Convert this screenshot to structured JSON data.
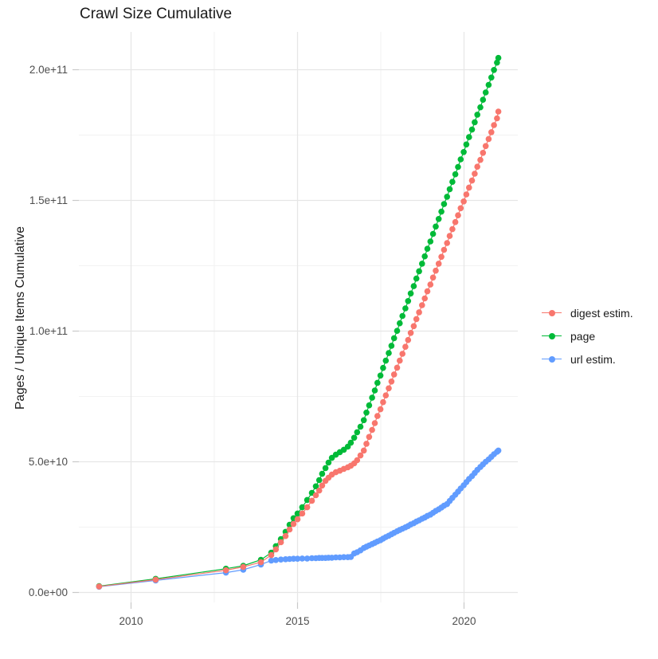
{
  "chart_data": {
    "type": "line",
    "title": "Crawl Size Cumulative",
    "xlabel": "",
    "ylabel": "Pages / Unique Items Cumulative",
    "grid": "major+minor",
    "legend_position": "right",
    "xlim": [
      2008.4,
      2021.6
    ],
    "ylim": [
      -3800000000.0,
      214500000000.0
    ],
    "x_ticks": {
      "major": [
        2010,
        2015,
        2020
      ],
      "minor": [
        2012.5,
        2017.5
      ],
      "labels": [
        "2010",
        "2015",
        "2020"
      ]
    },
    "y_ticks": {
      "major_billions": [
        0,
        50,
        100,
        150,
        200
      ],
      "minor_billions": [
        25,
        75,
        125,
        175
      ],
      "labels": [
        "0.0e+00",
        "5.0e+10",
        "1.0e+11",
        "1.5e+11",
        "2.0e+11"
      ]
    },
    "y_unit": "billions (1e9 items)",
    "x": [
      2009.04,
      2010.74,
      2012.85,
      2013.37,
      2013.9,
      2014.21,
      2014.35,
      2014.5,
      2014.64,
      2014.76,
      2014.88,
      2015.0,
      2015.14,
      2015.29,
      2015.43,
      2015.55,
      2015.65,
      2015.74,
      2015.84,
      2015.93,
      2016.03,
      2016.15,
      2016.27,
      2016.39,
      2016.51,
      2016.6,
      2016.7,
      2016.79,
      2016.89,
      2016.99,
      2017.07,
      2017.15,
      2017.24,
      2017.32,
      2017.4,
      2017.49,
      2017.57,
      2017.65,
      2017.74,
      2017.82,
      2017.9,
      2017.99,
      2018.07,
      2018.15,
      2018.24,
      2018.32,
      2018.4,
      2018.49,
      2018.57,
      2018.65,
      2018.74,
      2018.82,
      2018.9,
      2018.99,
      2019.07,
      2019.15,
      2019.24,
      2019.32,
      2019.4,
      2019.49,
      2019.57,
      2019.65,
      2019.74,
      2019.82,
      2019.9,
      2019.99,
      2020.07,
      2020.15,
      2020.24,
      2020.32,
      2020.4,
      2020.49,
      2020.57,
      2020.65,
      2020.74,
      2020.82,
      2020.9,
      2020.99,
      2021.03
    ],
    "series": [
      {
        "name": "digest estim.",
        "color": "#F8766D",
        "values_billions": [
          2.3,
          4.9,
          8.5,
          9.8,
          11.6,
          14.3,
          16.5,
          19.2,
          21.6,
          24.1,
          26.2,
          28.0,
          30.2,
          32.6,
          35.1,
          37.2,
          39.0,
          40.9,
          42.7,
          43.9,
          45.1,
          46.0,
          46.6,
          47.3,
          47.9,
          48.5,
          49.4,
          50.6,
          52.4,
          54.3,
          56.9,
          59.5,
          62.2,
          64.8,
          67.5,
          70.1,
          72.8,
          75.4,
          78.1,
          80.7,
          83.4,
          86.0,
          88.7,
          91.3,
          94.0,
          96.6,
          99.3,
          101.9,
          104.6,
          107.2,
          109.9,
          112.5,
          115.2,
          117.8,
          120.5,
          123.1,
          125.8,
          128.4,
          131.1,
          133.7,
          136.4,
          139.0,
          141.7,
          144.3,
          147.0,
          149.6,
          152.3,
          154.9,
          157.6,
          160.2,
          162.9,
          165.5,
          168.2,
          170.8,
          173.5,
          176.1,
          178.8,
          181.4,
          184.0
        ]
      },
      {
        "name": "page",
        "color": "#00BA38",
        "values_billions": [
          2.4,
          5.2,
          9.1,
          10.2,
          12.5,
          15.2,
          17.7,
          20.4,
          23.2,
          25.9,
          28.4,
          30.2,
          32.6,
          35.4,
          38.1,
          40.6,
          43.0,
          45.4,
          47.6,
          49.7,
          51.5,
          52.7,
          53.7,
          54.6,
          55.8,
          57.3,
          59.2,
          61.3,
          63.4,
          65.9,
          68.8,
          71.6,
          74.5,
          77.3,
          80.2,
          83.0,
          85.9,
          88.7,
          91.6,
          94.4,
          97.3,
          100.1,
          103.0,
          105.8,
          108.7,
          111.5,
          114.4,
          117.2,
          120.1,
          122.9,
          125.8,
          128.6,
          131.5,
          134.3,
          137.2,
          140.0,
          142.9,
          145.7,
          148.6,
          151.4,
          154.3,
          157.1,
          160.0,
          162.8,
          165.7,
          168.5,
          171.4,
          174.2,
          177.1,
          179.9,
          182.8,
          185.6,
          188.5,
          191.3,
          194.2,
          197.0,
          199.9,
          202.7,
          204.5
        ]
      },
      {
        "name": "url estim.",
        "color": "#619CFF",
        "values_billions": [
          2.2,
          4.6,
          7.6,
          8.7,
          10.7,
          12.2,
          12.4,
          12.6,
          12.7,
          12.8,
          12.9,
          12.9,
          13.0,
          13.0,
          13.1,
          13.1,
          13.2,
          13.2,
          13.2,
          13.3,
          13.3,
          13.4,
          13.4,
          13.5,
          13.5,
          13.6,
          14.9,
          15.4,
          16.1,
          17.0,
          17.5,
          18.0,
          18.5,
          19.0,
          19.5,
          20.0,
          20.6,
          21.2,
          21.7,
          22.3,
          22.8,
          23.4,
          23.9,
          24.4,
          24.9,
          25.4,
          26.0,
          26.5,
          27.1,
          27.6,
          28.2,
          28.7,
          29.3,
          29.8,
          30.5,
          31.2,
          31.8,
          32.5,
          33.2,
          33.8,
          35.0,
          36.2,
          37.4,
          38.6,
          39.8,
          41.0,
          42.2,
          43.4,
          44.5,
          45.7,
          46.9,
          48.0,
          49.0,
          50.0,
          50.9,
          51.9,
          52.9,
          53.8,
          54.3
        ]
      }
    ]
  },
  "style_colors": {
    "background": "#FFFFFF",
    "grid_major": "#E6E6E6",
    "grid_minor": "#F2F2F2",
    "tick_mark": "#C9C9C9",
    "tick_label": "#4D4D4D",
    "text": "#1A1A1A"
  }
}
